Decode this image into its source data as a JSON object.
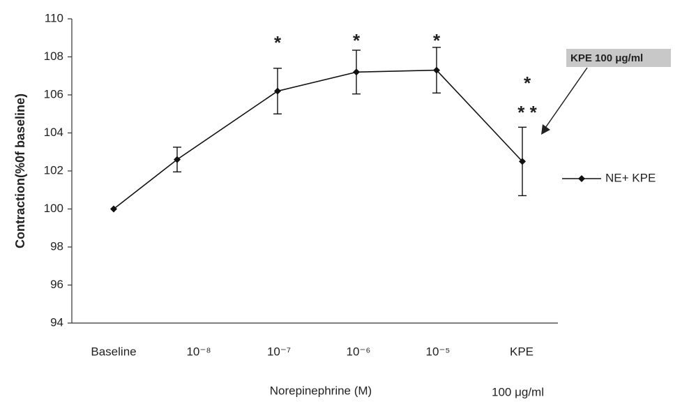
{
  "chart_data": {
    "type": "line",
    "y_label": "Contraction(%0f  baseline)",
    "x_label": "Norepinephrine (M)",
    "x_sublabel": "100  μg/ml",
    "callout": "KPE 100 μg/ml",
    "categories": [
      "Baseline",
      "10⁻⁸",
      "10⁻⁷",
      "10⁻⁶",
      "10⁻⁵",
      "KPE"
    ],
    "series": [
      {
        "name": "NE+ KPE",
        "color": "#111111",
        "values": [
          100,
          102.6,
          106.2,
          107.2,
          107.3,
          102.5
        ],
        "errors": [
          null,
          0.65,
          1.2,
          1.15,
          1.2,
          1.8
        ]
      }
    ],
    "annotations": [
      {
        "category": "10⁻⁷",
        "text": "*"
      },
      {
        "category": "10⁻⁶",
        "text": "*"
      },
      {
        "category": "10⁻⁵",
        "text": "*"
      },
      {
        "category": "KPE",
        "text": "*"
      },
      {
        "category": "KPE",
        "text": "* *"
      }
    ],
    "ylim": [
      94,
      110
    ],
    "yticks": [
      94,
      96,
      98,
      100,
      102,
      104,
      106,
      108,
      110
    ]
  }
}
